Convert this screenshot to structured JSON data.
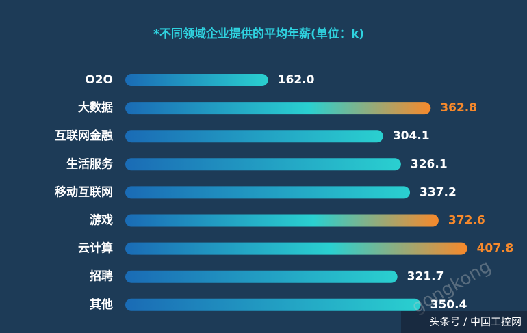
{
  "chart_data": {
    "type": "hbar",
    "title": "*不同领域企业提供的平均年薪(单位：k)",
    "categories": [
      "O2O",
      "大数据",
      "互联网金融",
      "生活服务",
      "移动互联网",
      "游戏",
      "云计算",
      "招聘",
      "其他"
    ],
    "values": [
      162.0,
      362.8,
      304.1,
      326.1,
      337.2,
      372.6,
      407.8,
      321.7,
      350.4
    ],
    "value_labels": [
      "162.0",
      "362.8",
      "304.1",
      "326.1",
      "337.2",
      "372.6",
      "407.8",
      "321.7",
      "350.4"
    ],
    "bar_colors": [
      "#2ad0d0",
      "#f7892b",
      "#2ad0d0",
      "#2ad0d0",
      "#2ad0d0",
      "#f7892b",
      "#f7892b",
      "#2ad0d0",
      "#2ad0d0"
    ],
    "xlim": [
      0,
      420
    ],
    "watermark": "gongkong",
    "footer": "头条号 / 中国工控网"
  }
}
